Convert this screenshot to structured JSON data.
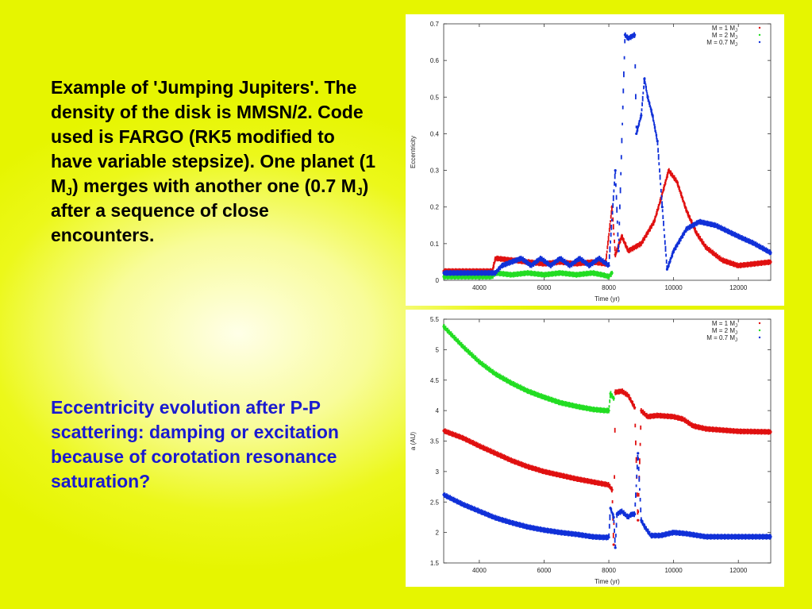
{
  "slide": {
    "desc_pre": "Example of 'Jumping Jupiters'. The density of the disk is MMSN/2. Code used is FARGO (RK5 modified to have variable stepsize). One planet (1 M",
    "desc_sub1": "J",
    "desc_mid": ") merges with another one (0.7 M",
    "desc_sub2": "J",
    "desc_post": ") after a sequence of close encounters.",
    "question": "Eccentricity evolution after P-P scattering: damping or excitation because of corotation resonance saturation?"
  },
  "colors": {
    "red": "#e01010",
    "green": "#22dd22",
    "blue": "#1030d8"
  },
  "chart_data": [
    {
      "type": "scatter",
      "xlabel": "Time (yr)",
      "ylabel": "Eccentricity",
      "xlim": [
        2900,
        13000
      ],
      "ylim": [
        0,
        0.7
      ],
      "xticks": [
        "4000",
        "6000",
        "8000",
        "10000",
        "12000"
      ],
      "xtick_values": [
        4000,
        6000,
        8000,
        10000,
        12000
      ],
      "yticks": [
        "0",
        "0.1",
        "0.2",
        "0.3",
        "0.4",
        "0.5",
        "0.6",
        "0.7"
      ],
      "ytick_values": [
        0,
        0.1,
        0.2,
        0.3,
        0.4,
        0.5,
        0.6,
        0.7
      ],
      "legend_position": "top-right",
      "series": [
        {
          "name": "M = 1 M",
          "sub": "J",
          "color": "red",
          "x": [
            2900,
            4400,
            4500,
            5000,
            5500,
            6000,
            6500,
            7000,
            7500,
            7900,
            8100,
            8200,
            8400,
            8600,
            8800,
            9000,
            9200,
            9400,
            9600,
            9850,
            10100,
            10400,
            10700,
            11000,
            11500,
            12000,
            12500,
            13000
          ],
          "y": [
            0.025,
            0.025,
            0.06,
            0.055,
            0.05,
            0.045,
            0.05,
            0.045,
            0.05,
            0.045,
            0.2,
            0.07,
            0.12,
            0.08,
            0.09,
            0.1,
            0.13,
            0.16,
            0.22,
            0.3,
            0.27,
            0.19,
            0.13,
            0.09,
            0.055,
            0.04,
            0.045,
            0.05
          ]
        },
        {
          "name": "M = 2 M",
          "sub": "J",
          "color": "green",
          "x": [
            2900,
            4400,
            4500,
            5000,
            5500,
            6000,
            6500,
            7000,
            7500,
            7800,
            8000,
            8100
          ],
          "y": [
            0.01,
            0.01,
            0.02,
            0.015,
            0.02,
            0.015,
            0.02,
            0.015,
            0.02,
            0.015,
            0.01,
            0.02
          ]
        },
        {
          "name": "M = 0.7 M",
          "sub": "J",
          "color": "blue",
          "x": [
            2900,
            4500,
            4700,
            5000,
            5300,
            5600,
            5900,
            6200,
            6500,
            6800,
            7100,
            7400,
            7700,
            8000,
            8200,
            8300,
            8500,
            8600,
            8800,
            8850,
            9000,
            9100,
            9200,
            9350,
            9500,
            9650,
            9800,
            10000,
            10400,
            10800,
            11300,
            12000,
            12500,
            13000
          ],
          "y": [
            0.02,
            0.02,
            0.04,
            0.05,
            0.06,
            0.04,
            0.06,
            0.04,
            0.06,
            0.04,
            0.06,
            0.04,
            0.06,
            0.04,
            0.3,
            0.08,
            0.67,
            0.66,
            0.67,
            0.4,
            0.45,
            0.55,
            0.5,
            0.45,
            0.38,
            0.2,
            0.03,
            0.08,
            0.14,
            0.16,
            0.15,
            0.12,
            0.1,
            0.075
          ]
        }
      ]
    },
    {
      "type": "scatter",
      "xlabel": "Time (yr)",
      "ylabel": "a (AU)",
      "xlim": [
        2900,
        13000
      ],
      "ylim": [
        1.5,
        5.5
      ],
      "xticks": [
        "4000",
        "6000",
        "8000",
        "10000",
        "12000"
      ],
      "xtick_values": [
        4000,
        6000,
        8000,
        10000,
        12000
      ],
      "yticks": [
        "1.5",
        "2",
        "2.5",
        "3",
        "3.5",
        "4",
        "4.5",
        "5",
        "5.5"
      ],
      "ytick_values": [
        1.5,
        2,
        2.5,
        3,
        3.5,
        4,
        4.5,
        5,
        5.5
      ],
      "legend_position": "top-right",
      "series": [
        {
          "name": "M = 1 M",
          "sub": "J",
          "color": "red",
          "x": [
            2900,
            3500,
            4000,
            4500,
            5000,
            5500,
            6000,
            6500,
            7000,
            7500,
            8000,
            8100,
            8150,
            8200,
            8400,
            8600,
            8800,
            8900,
            9000,
            9200,
            9500,
            10000,
            10300,
            10600,
            11000,
            11500,
            12000,
            13000
          ],
          "y": [
            3.67,
            3.55,
            3.42,
            3.3,
            3.18,
            3.08,
            3.0,
            2.94,
            2.88,
            2.83,
            2.78,
            2.7,
            1.8,
            4.3,
            4.32,
            4.25,
            4.05,
            2.2,
            4.0,
            3.9,
            3.92,
            3.9,
            3.86,
            3.75,
            3.7,
            3.68,
            3.66,
            3.65
          ]
        },
        {
          "name": "M = 2 M",
          "sub": "J",
          "color": "green",
          "x": [
            2900,
            3500,
            4000,
            4500,
            5000,
            5500,
            6000,
            6500,
            7000,
            7500,
            7900,
            8000,
            8050,
            8150
          ],
          "y": [
            5.38,
            5.05,
            4.8,
            4.6,
            4.45,
            4.32,
            4.22,
            4.13,
            4.07,
            4.02,
            4.0,
            4.0,
            4.28,
            4.2
          ]
        },
        {
          "name": "M = 0.7 M",
          "sub": "J",
          "color": "blue",
          "x": [
            2900,
            3500,
            4000,
            4500,
            5000,
            5500,
            6000,
            6500,
            7000,
            7500,
            7800,
            8000,
            8050,
            8150,
            8200,
            8250,
            8400,
            8600,
            8700,
            8800,
            8900,
            9000,
            9100,
            9300,
            9600,
            10000,
            10400,
            11000,
            12000,
            13000
          ],
          "y": [
            2.62,
            2.46,
            2.35,
            2.24,
            2.16,
            2.09,
            2.04,
            2.0,
            1.97,
            1.93,
            1.92,
            1.92,
            2.4,
            2.25,
            1.75,
            2.3,
            2.35,
            2.25,
            2.3,
            2.3,
            3.3,
            2.2,
            2.1,
            1.95,
            1.95,
            2.0,
            1.98,
            1.93,
            1.93,
            1.93
          ]
        }
      ]
    }
  ]
}
